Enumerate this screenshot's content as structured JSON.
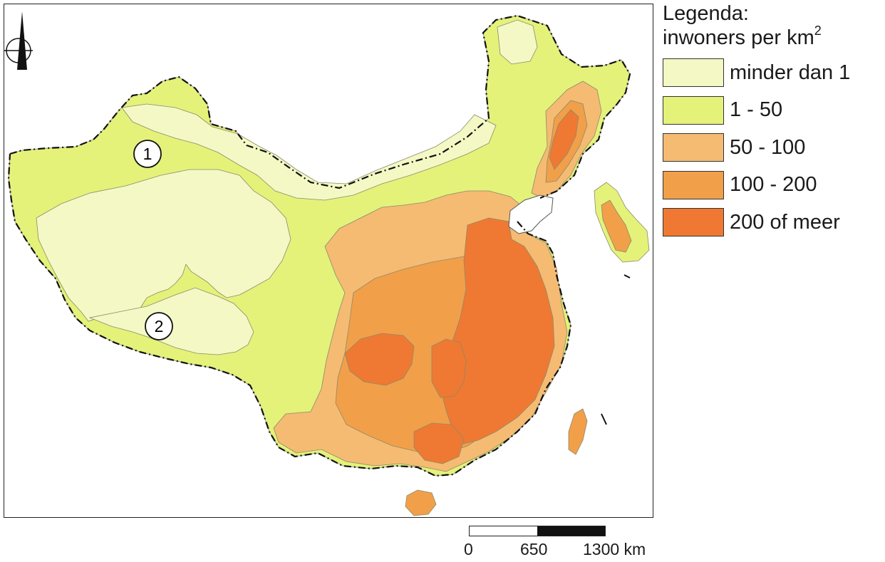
{
  "legend": {
    "title_line1": "Legenda:",
    "title_line2": "inwoners per km",
    "title_sup": "2",
    "items": [
      {
        "label": "minder dan 1",
        "color": "#f4f8c4"
      },
      {
        "label": "1 - 50",
        "color": "#e4f27a"
      },
      {
        "label": "50 - 100",
        "color": "#f5bb72"
      },
      {
        "label": "100 - 200",
        "color": "#f29f4a"
      },
      {
        "label": "200 of meer",
        "color": "#ef7932"
      }
    ]
  },
  "markers": [
    {
      "label": "1"
    },
    {
      "label": "2"
    }
  ],
  "scale": {
    "labels": [
      "0",
      "650",
      "1300 km"
    ]
  },
  "icons": {
    "north_arrow": "north-arrow-icon"
  }
}
